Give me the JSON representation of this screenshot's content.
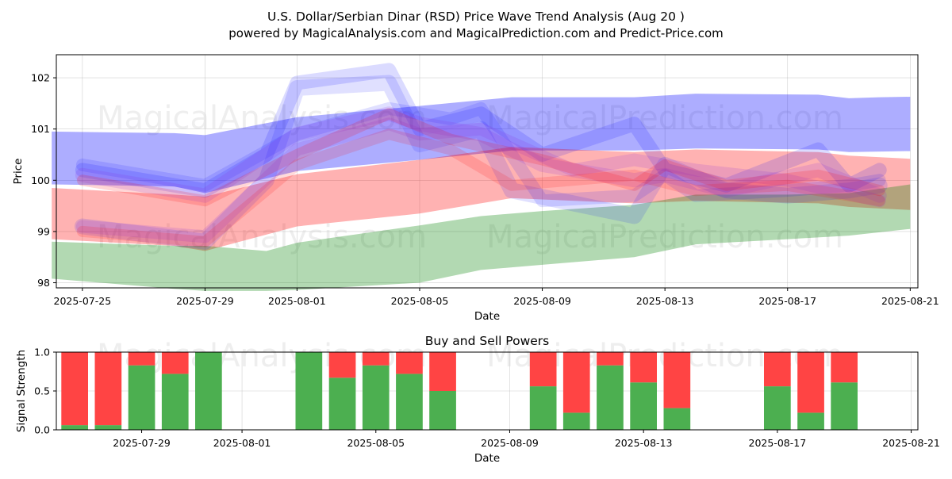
{
  "title_line1": "U.S. Dollar/Serbian Dinar (RSD) Price Wave Trend Analysis (Aug 20 )",
  "title_line2": "powered by MagicalAnalysis.com and MagicalPrediction.com and Predict-Price.com",
  "watermarks": {
    "left": "MagicalAnalysis.com",
    "right": "MagicalPrediction.com"
  },
  "colors": {
    "blue": "#0000ff",
    "red": "#ff0000",
    "green": "#008000",
    "buy": "#4caf50",
    "sell": "#ff4444"
  },
  "chart_data": [
    {
      "type": "area",
      "title": "",
      "xlabel": "Date",
      "ylabel": "Price",
      "x_range": [
        "2025-07-24",
        "2025-08-21"
      ],
      "ylim": [
        97.9,
        102.45
      ],
      "yticks": [
        "98",
        "99",
        "100",
        "101",
        "102"
      ],
      "xticks": [
        {
          "date": "2025-07-25",
          "label": "2025-07-25"
        },
        {
          "date": "2025-07-29",
          "label": "2025-07-29"
        },
        {
          "date": "2025-08-01",
          "label": "2025-08-01"
        },
        {
          "date": "2025-08-05",
          "label": "2025-08-05"
        },
        {
          "date": "2025-08-09",
          "label": "2025-08-09"
        },
        {
          "date": "2025-08-13",
          "label": "2025-08-13"
        },
        {
          "date": "2025-08-17",
          "label": "2025-08-17"
        },
        {
          "date": "2025-08-21",
          "label": "2025-08-21"
        }
      ],
      "bands": [
        {
          "name": "upper-blue-band",
          "color": "blue",
          "opacity": 0.32,
          "x": [
            "2025-07-24",
            "2025-07-28",
            "2025-07-29",
            "2025-08-01",
            "2025-08-05",
            "2025-08-08",
            "2025-08-12",
            "2025-08-14",
            "2025-08-18",
            "2025-08-19",
            "2025-08-20",
            "2025-08-21"
          ],
          "upper": [
            100.95,
            100.92,
            100.88,
            101.23,
            101.45,
            101.62,
            101.62,
            101.69,
            101.67,
            101.6,
            101.62,
            101.63
          ],
          "lower": [
            99.92,
            99.88,
            99.75,
            100.18,
            100.4,
            100.58,
            100.58,
            100.62,
            100.6,
            100.55,
            100.56,
            100.57
          ]
        },
        {
          "name": "middle-red-band",
          "color": "red",
          "opacity": 0.3,
          "x": [
            "2025-07-24",
            "2025-07-28",
            "2025-07-29",
            "2025-08-01",
            "2025-08-05",
            "2025-08-08",
            "2025-08-12",
            "2025-08-14",
            "2025-08-18",
            "2025-08-19",
            "2025-08-21"
          ],
          "upper": [
            99.85,
            99.72,
            99.68,
            100.12,
            100.4,
            100.65,
            100.55,
            100.6,
            100.55,
            100.48,
            100.42
          ],
          "lower": [
            98.85,
            98.72,
            98.62,
            99.1,
            99.35,
            99.65,
            99.55,
            99.6,
            99.55,
            99.48,
            99.42
          ]
        },
        {
          "name": "lower-green-band",
          "color": "green",
          "opacity": 0.3,
          "x": [
            "2025-07-24",
            "2025-07-28",
            "2025-07-29",
            "2025-07-31",
            "2025-08-01",
            "2025-08-05",
            "2025-08-07",
            "2025-08-09",
            "2025-08-12",
            "2025-08-14",
            "2025-08-17",
            "2025-08-19",
            "2025-08-21"
          ],
          "upper": [
            98.8,
            98.72,
            98.72,
            98.62,
            98.78,
            99.12,
            99.3,
            99.4,
            99.52,
            99.72,
            99.72,
            99.75,
            99.92
          ],
          "lower": [
            98.08,
            97.88,
            97.84,
            97.84,
            97.86,
            98.0,
            98.25,
            98.35,
            98.5,
            98.75,
            98.85,
            98.92,
            99.05
          ]
        }
      ],
      "waves": [
        {
          "color": "blue",
          "opacity": 0.14,
          "width": 18,
          "x": [
            "2025-07-25",
            "2025-07-29",
            "2025-07-31",
            "2025-08-01",
            "2025-08-04",
            "2025-08-05",
            "2025-08-07",
            "2025-08-09",
            "2025-08-12",
            "2025-08-13",
            "2025-08-15",
            "2025-08-18",
            "2025-08-19",
            "2025-08-20"
          ],
          "y": [
            100.2,
            99.8,
            100.5,
            101.9,
            102.15,
            101.0,
            101.3,
            100.5,
            101.1,
            100.2,
            99.9,
            100.6,
            99.9,
            100.2
          ]
        },
        {
          "color": "blue",
          "opacity": 0.12,
          "width": 20,
          "x": [
            "2025-07-25",
            "2025-07-29",
            "2025-07-31",
            "2025-08-01",
            "2025-08-04",
            "2025-08-05",
            "2025-08-07",
            "2025-08-08",
            "2025-08-12",
            "2025-08-13",
            "2025-08-15",
            "2025-08-17",
            "2025-08-19",
            "2025-08-20"
          ],
          "y": [
            99.1,
            98.8,
            100.0,
            101.8,
            101.9,
            100.7,
            101.0,
            99.8,
            99.3,
            100.3,
            99.8,
            99.7,
            99.8,
            99.9
          ]
        },
        {
          "color": "blue",
          "opacity": 0.12,
          "width": 16,
          "x": [
            "2025-07-25",
            "2025-07-28",
            "2025-07-29",
            "2025-08-01",
            "2025-08-04",
            "2025-08-06",
            "2025-08-07",
            "2025-08-09",
            "2025-08-12",
            "2025-08-13",
            "2025-08-14",
            "2025-08-17",
            "2025-08-19",
            "2025-08-20"
          ],
          "y": [
            100.3,
            100.0,
            99.9,
            100.9,
            101.4,
            101.2,
            101.4,
            99.6,
            99.7,
            100.1,
            99.7,
            99.8,
            99.9,
            100.0
          ]
        },
        {
          "color": "purple",
          "opacity": 0.16,
          "width": 18,
          "x": [
            "2025-07-25",
            "2025-07-29",
            "2025-08-01",
            "2025-08-04",
            "2025-08-05",
            "2025-08-07",
            "2025-08-09",
            "2025-08-12",
            "2025-08-13",
            "2025-08-15",
            "2025-08-18",
            "2025-08-20"
          ],
          "y": [
            100.1,
            99.7,
            100.9,
            101.3,
            101.1,
            100.9,
            100.3,
            100.0,
            100.1,
            99.8,
            100.2,
            99.7
          ]
        },
        {
          "color": "purple",
          "opacity": 0.16,
          "width": 16,
          "x": [
            "2025-07-25",
            "2025-07-29",
            "2025-08-01",
            "2025-08-04",
            "2025-08-05",
            "2025-08-07",
            "2025-08-10",
            "2025-08-12",
            "2025-08-14",
            "2025-08-17",
            "2025-08-20"
          ],
          "y": [
            99.1,
            98.9,
            100.6,
            101.1,
            100.9,
            101.0,
            100.2,
            100.4,
            100.2,
            100.0,
            99.6
          ]
        },
        {
          "color": "red",
          "opacity": 0.16,
          "width": 14,
          "x": [
            "2025-07-25",
            "2025-07-29",
            "2025-08-01",
            "2025-08-04",
            "2025-08-06",
            "2025-08-09",
            "2025-08-12",
            "2025-08-13",
            "2025-08-15",
            "2025-08-18",
            "2025-08-20"
          ],
          "y": [
            100.0,
            99.6,
            100.5,
            101.3,
            100.8,
            100.4,
            99.9,
            100.3,
            99.9,
            100.1,
            99.8
          ]
        },
        {
          "color": "red",
          "opacity": 0.14,
          "width": 14,
          "x": [
            "2025-07-25",
            "2025-07-29",
            "2025-08-01",
            "2025-08-04",
            "2025-08-06",
            "2025-08-08",
            "2025-08-12",
            "2025-08-14",
            "2025-08-17",
            "2025-08-20"
          ],
          "y": [
            99.0,
            98.8,
            100.3,
            100.9,
            100.6,
            99.9,
            100.1,
            99.8,
            99.9,
            99.6
          ]
        }
      ]
    },
    {
      "type": "bar",
      "title": "Buy and Sell Powers",
      "xlabel": "Date",
      "ylabel": "Signal Strength",
      "x_range": [
        "2025-07-26",
        "2025-08-21"
      ],
      "ylim": [
        0,
        1
      ],
      "yticks": [
        "0.0",
        "0.5",
        "1.0"
      ],
      "xticks": [
        {
          "date": "2025-07-29",
          "label": "2025-07-29"
        },
        {
          "date": "2025-08-01",
          "label": "2025-08-01"
        },
        {
          "date": "2025-08-05",
          "label": "2025-08-05"
        },
        {
          "date": "2025-08-09",
          "label": "2025-08-09"
        },
        {
          "date": "2025-08-13",
          "label": "2025-08-13"
        },
        {
          "date": "2025-08-17",
          "label": "2025-08-17"
        },
        {
          "date": "2025-08-21",
          "label": "2025-08-21"
        }
      ],
      "series": [
        {
          "name": "Buy",
          "color": "buy"
        },
        {
          "name": "Sell",
          "color": "sell"
        }
      ],
      "dates": [
        "2025-07-27",
        "2025-07-28",
        "2025-07-29",
        "2025-07-30",
        "2025-07-31",
        "2025-08-03",
        "2025-08-04",
        "2025-08-05",
        "2025-08-06",
        "2025-08-07",
        "2025-08-10",
        "2025-08-11",
        "2025-08-12",
        "2025-08-13",
        "2025-08-14",
        "2025-08-17",
        "2025-08-18",
        "2025-08-19"
      ],
      "buy": [
        0.06,
        0.06,
        0.83,
        0.72,
        1.0,
        1.0,
        0.67,
        0.83,
        0.72,
        0.5,
        0.56,
        0.22,
        0.83,
        0.61,
        0.28,
        0.56,
        0.22,
        0.61
      ],
      "sell": [
        0.94,
        0.94,
        0.17,
        0.28,
        0.0,
        0.0,
        0.33,
        0.17,
        0.28,
        0.5,
        0.44,
        0.78,
        0.17,
        0.39,
        0.72,
        0.44,
        0.78,
        0.39
      ]
    }
  ]
}
